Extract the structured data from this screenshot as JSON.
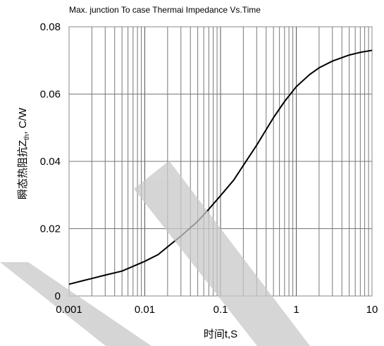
{
  "chart_data": {
    "type": "line",
    "title": "Max. junction To case Thermai Impedance Vs.Time",
    "xlabel": "时间t,S",
    "ylabel": "瞬态热阻抗Z_th, C/W",
    "ylabel_parts": {
      "prefix": "瞬态热阻抗Z",
      "sub": "th",
      "suffix": ", C/W"
    },
    "x_scale": "log",
    "xlim": [
      0.001,
      10
    ],
    "ylim": [
      0,
      0.08
    ],
    "x_ticks": [
      "0.001",
      "0.01",
      "0.1",
      "1",
      "10"
    ],
    "x_tick_values": [
      0.001,
      0.01,
      0.1,
      1,
      10
    ],
    "y_ticks": [
      "0",
      "0.02",
      "0.04",
      "0.06",
      "0.08"
    ],
    "y_tick_values": [
      0,
      0.02,
      0.04,
      0.06,
      0.08
    ],
    "grid": true,
    "series": [
      {
        "x": [
          0.001,
          0.0015,
          0.002,
          0.003,
          0.005,
          0.007,
          0.01,
          0.015,
          0.02,
          0.03,
          0.05,
          0.07,
          0.1,
          0.15,
          0.2,
          0.3,
          0.5,
          0.7,
          1,
          1.5,
          2,
          3,
          5,
          7,
          10
        ],
        "y": [
          0.0035,
          0.0045,
          0.0052,
          0.0062,
          0.0074,
          0.0088,
          0.0103,
          0.0123,
          0.0146,
          0.0178,
          0.0222,
          0.0258,
          0.0298,
          0.0345,
          0.0388,
          0.0448,
          0.053,
          0.0578,
          0.0622,
          0.0658,
          0.0678,
          0.0698,
          0.0716,
          0.0724,
          0.073
        ]
      }
    ]
  }
}
